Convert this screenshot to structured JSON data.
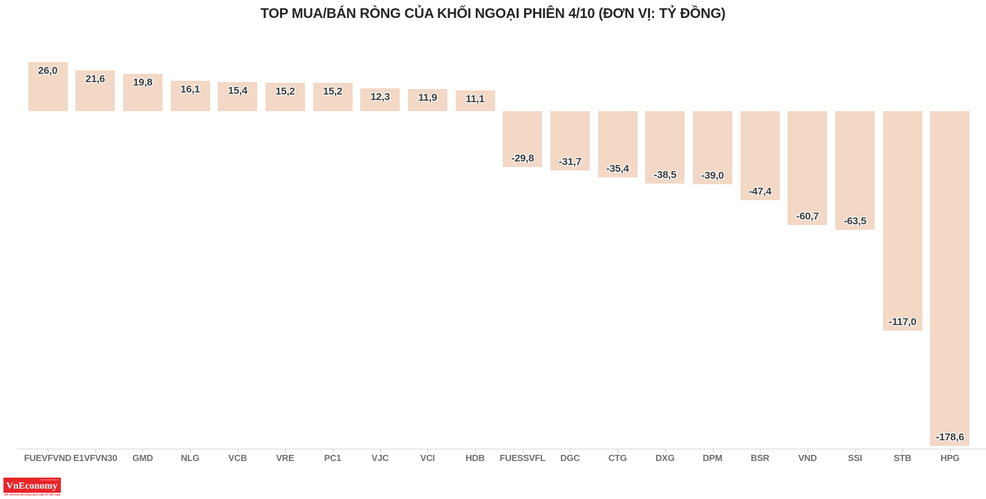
{
  "title": "TOP MUA/BÁN RÒNG CỦA KHỐI NGOẠI PHIÊN 4/10 (ĐƠN VỊ: TỶ ĐỒNG)",
  "chart_data": {
    "type": "bar",
    "title": "TOP MUA/BÁN RÒNG CỦA KHỐI NGOẠI PHIÊN 4/10 (ĐƠN VỊ: TỶ ĐỒNG)",
    "unit": "tỷ đồng",
    "categories": [
      "FUEVFVND",
      "E1VFVN30",
      "GMD",
      "NLG",
      "VCB",
      "VRE",
      "PC1",
      "VJC",
      "VCI",
      "HDB",
      "FUESSVFL",
      "DGC",
      "CTG",
      "DXG",
      "DPM",
      "BSR",
      "VND",
      "SSI",
      "STB",
      "HPG"
    ],
    "values": [
      26.0,
      21.6,
      19.8,
      16.1,
      15.4,
      15.2,
      15.2,
      12.3,
      11.9,
      11.1,
      -29.8,
      -31.7,
      -35.4,
      -38.5,
      -39.0,
      -47.4,
      -60.7,
      -63.5,
      -117.0,
      -178.6
    ],
    "value_labels": [
      "26,0",
      "21,6",
      "19,8",
      "16,1",
      "15,4",
      "15,2",
      "15,2",
      "12,3",
      "11,9",
      "11,1",
      "-29,8",
      "-31,7",
      "-35,4",
      "-38,5",
      "-39,0",
      "-47,4",
      "-60,7",
      "-63,5",
      "-117,0",
      "-178,6"
    ],
    "xlabel": "",
    "ylabel": "",
    "ylim": [
      -185,
      30
    ],
    "grid": false,
    "legend": false,
    "bar_color": "#F2D8C5",
    "value_label_color": "#3a3a3a",
    "axis_label_color": "#6f6f6f"
  },
  "logo": {
    "brand": "VnEconomy",
    "box_top_text": "www.vneconomy.vn",
    "tagline": "TẠP CHÍ CỦA HỘI KHOA HỌC KINH TẾ VIỆT NAM",
    "brand_color": "#e8252a"
  }
}
